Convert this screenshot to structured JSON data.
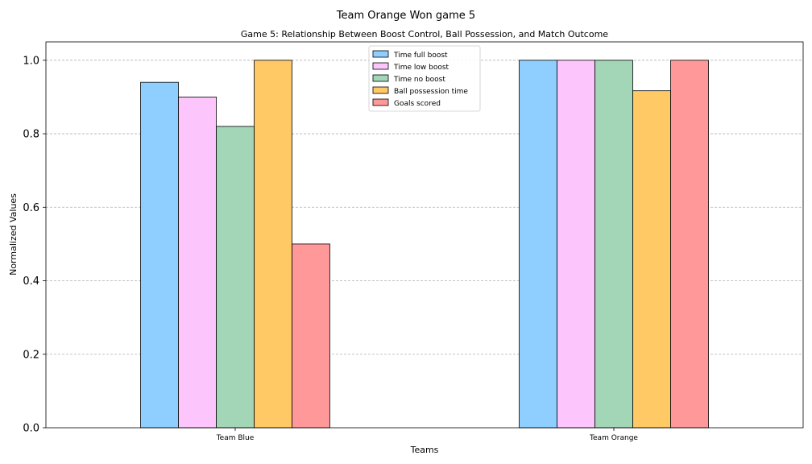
{
  "chart_data": {
    "type": "bar",
    "suptitle": "Team Orange Won game 5",
    "title": "Game 5: Relationship Between Boost Control, Ball Possession, and Match Outcome",
    "xlabel": "Teams",
    "ylabel": "Normalized Values",
    "categories": [
      "Team Blue",
      "Team Orange"
    ],
    "series": [
      {
        "name": "Time full boost",
        "color": "#8ecfff",
        "values": [
          0.94,
          1.0
        ]
      },
      {
        "name": "Time low boost",
        "color": "#fcc5fc",
        "values": [
          0.9,
          1.0
        ]
      },
      {
        "name": "Time no boost",
        "color": "#a2d6b7",
        "values": [
          0.82,
          1.0
        ]
      },
      {
        "name": "Ball possession time",
        "color": "#ffc966",
        "values": [
          1.0,
          0.917
        ]
      },
      {
        "name": "Goals scored",
        "color": "#ff9999",
        "values": [
          0.5,
          1.0
        ]
      }
    ],
    "ylim": [
      0,
      1.05
    ],
    "yticks": [
      "0.0",
      "0.2",
      "0.4",
      "0.6",
      "0.8",
      "1.0"
    ],
    "grid": "y",
    "legend_position": "top-center"
  }
}
